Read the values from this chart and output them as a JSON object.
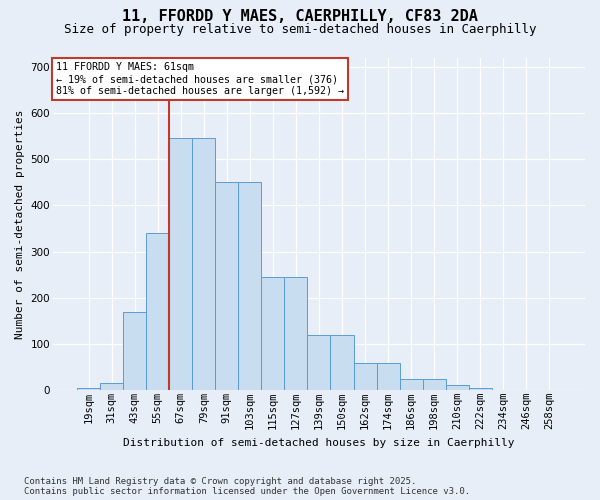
{
  "title1": "11, FFORDD Y MAES, CAERPHILLY, CF83 2DA",
  "title2": "Size of property relative to semi-detached houses in Caerphilly",
  "xlabel": "Distribution of semi-detached houses by size in Caerphilly",
  "ylabel": "Number of semi-detached properties",
  "categories": [
    "19sqm",
    "31sqm",
    "43sqm",
    "55sqm",
    "67sqm",
    "79sqm",
    "91sqm",
    "103sqm",
    "115sqm",
    "127sqm",
    "139sqm",
    "150sqm",
    "162sqm",
    "174sqm",
    "186sqm",
    "198sqm",
    "210sqm",
    "222sqm",
    "234sqm",
    "246sqm",
    "258sqm"
  ],
  "values": [
    5,
    15,
    170,
    340,
    545,
    545,
    450,
    450,
    245,
    245,
    120,
    120,
    60,
    60,
    25,
    25,
    12,
    4,
    0,
    0,
    0
  ],
  "bar_color": "#c8ddf0",
  "bar_edge_color": "#5b9bd5",
  "vline_position": 4.0,
  "vline_color": "#c0392b",
  "annotation_title": "11 FFORDD Y MAES: 61sqm",
  "annotation_line1": "← 19% of semi-detached houses are smaller (376)",
  "annotation_line2": "81% of semi-detached houses are larger (1,592) →",
  "annotation_box_edgecolor": "#c0392b",
  "ylim": [
    0,
    720
  ],
  "yticks": [
    0,
    100,
    200,
    300,
    400,
    500,
    600,
    700
  ],
  "footer1": "Contains HM Land Registry data © Crown copyright and database right 2025.",
  "footer2": "Contains public sector information licensed under the Open Government Licence v3.0.",
  "bg_color": "#e8eef8",
  "title_fontsize": 11,
  "subtitle_fontsize": 9,
  "ylabel_fontsize": 8,
  "xlabel_fontsize": 8,
  "tick_fontsize": 7.5,
  "footer_fontsize": 6.5
}
